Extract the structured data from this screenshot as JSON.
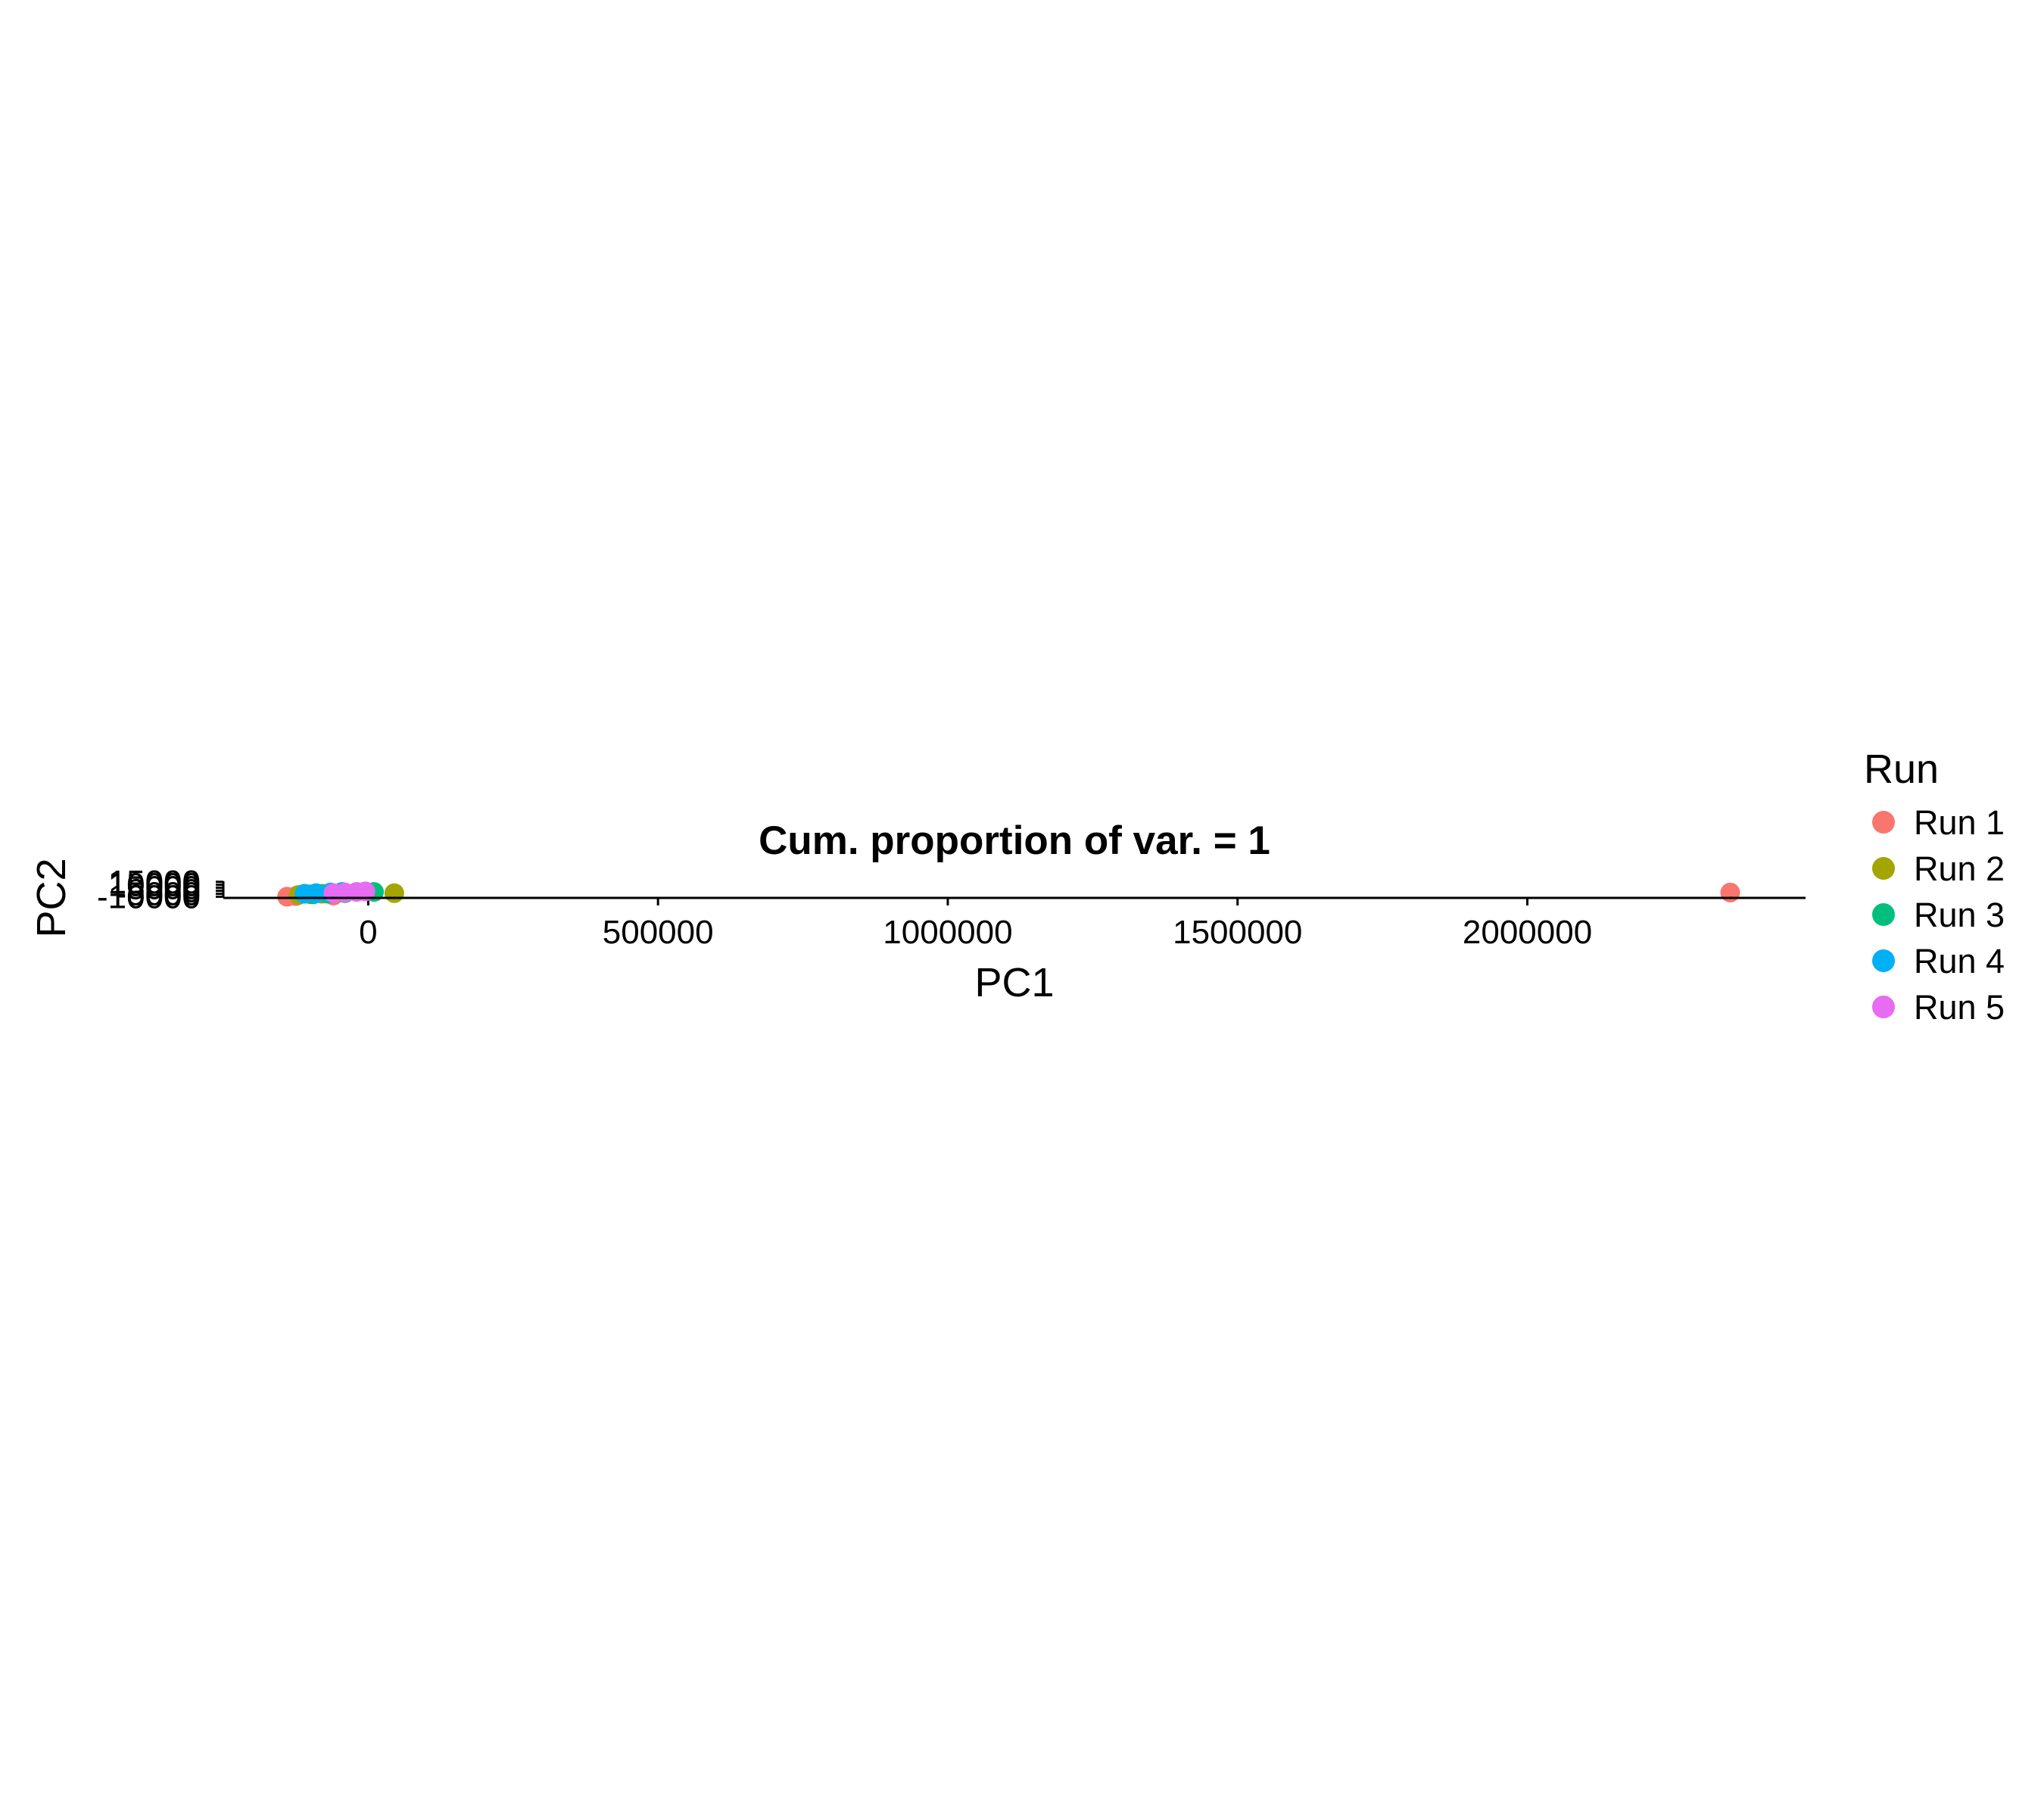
{
  "chart_data": {
    "type": "scatter",
    "title": "Cum. proportion of var. = 1",
    "xlabel": "PC1",
    "ylabel": "PC2",
    "xlim": [
      -250000,
      2480000
    ],
    "ylim": [
      -12000,
      16000
    ],
    "x_ticks": [
      {
        "value": 0,
        "label": "0"
      },
      {
        "value": 500000,
        "label": "500000"
      },
      {
        "value": 1000000,
        "label": "1000000"
      },
      {
        "value": 1500000,
        "label": "1500000"
      },
      {
        "value": 2000000,
        "label": "2000000"
      }
    ],
    "y_ticks": [
      {
        "value": 15000,
        "label": "15000"
      },
      {
        "value": 10000,
        "label": "10000"
      },
      {
        "value": 5000,
        "label": "5000"
      },
      {
        "value": 0,
        "label": "0"
      },
      {
        "value": -5000,
        "label": "-5000"
      },
      {
        "value": -10000,
        "label": "-10000"
      }
    ],
    "grid": false,
    "legend": {
      "title": "Run",
      "placement": "right"
    },
    "series": [
      {
        "name": "Run 1",
        "color": "#F8766D",
        "points": [
          [
            -140000,
            -10000
          ],
          [
            -125000,
            -9000
          ],
          [
            -60000,
            -8000
          ],
          [
            2350000,
            -3000
          ]
        ]
      },
      {
        "name": "Run 2",
        "color": "#A3A500",
        "points": [
          [
            -120000,
            -7000
          ],
          [
            -100000,
            -6000
          ],
          [
            -80000,
            -5000
          ],
          [
            45000,
            -4000
          ]
        ]
      },
      {
        "name": "Run 3",
        "color": "#00BF7D",
        "points": [
          [
            -95000,
            -6000
          ],
          [
            -70000,
            -5000
          ],
          [
            -40000,
            -4000
          ],
          [
            10000,
            -2000
          ]
        ]
      },
      {
        "name": "Run 4",
        "color": "#00B0F6",
        "points": [
          [
            -110000,
            -5000
          ],
          [
            -90000,
            -4000
          ],
          [
            -65000,
            -3000
          ],
          [
            -45000,
            -2000
          ]
        ]
      },
      {
        "name": "Run 5",
        "color": "#E76BF3",
        "points": [
          [
            -60000,
            -4000
          ],
          [
            -40000,
            -3000
          ],
          [
            -20000,
            -2000
          ],
          [
            -5000,
            -1000
          ]
        ]
      }
    ]
  }
}
